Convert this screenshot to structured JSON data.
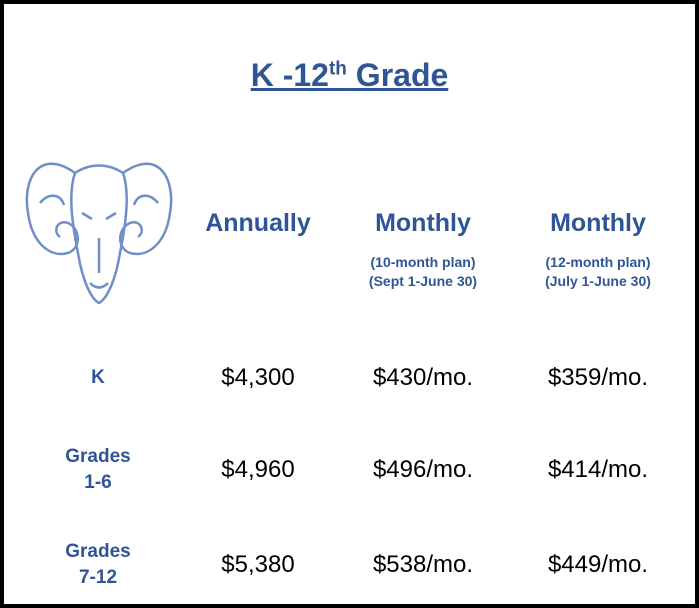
{
  "header": {
    "title": {
      "main": "K -12",
      "sup": "th",
      "rest": " Grade"
    }
  },
  "table": {
    "columns": [
      {
        "title": "Annually",
        "notes": []
      },
      {
        "title": "Monthly",
        "notes": [
          "(10-month plan)",
          "(Sept 1-June 30)"
        ]
      },
      {
        "title": "Monthly",
        "notes": [
          "(12-month plan)",
          "(July 1-June 30)"
        ]
      }
    ],
    "rows": [
      {
        "label": [
          "K"
        ],
        "cells": [
          "$4,300",
          "$430/mo.",
          "$359/mo."
        ]
      },
      {
        "label": [
          "Grades",
          "1-6"
        ],
        "cells": [
          "$4,960",
          "$496/mo.",
          "$414/mo."
        ]
      },
      {
        "label": [
          "Grades",
          "7-12"
        ],
        "cells": [
          "$5,380",
          "$538/mo.",
          "$449/mo."
        ]
      }
    ]
  }
}
